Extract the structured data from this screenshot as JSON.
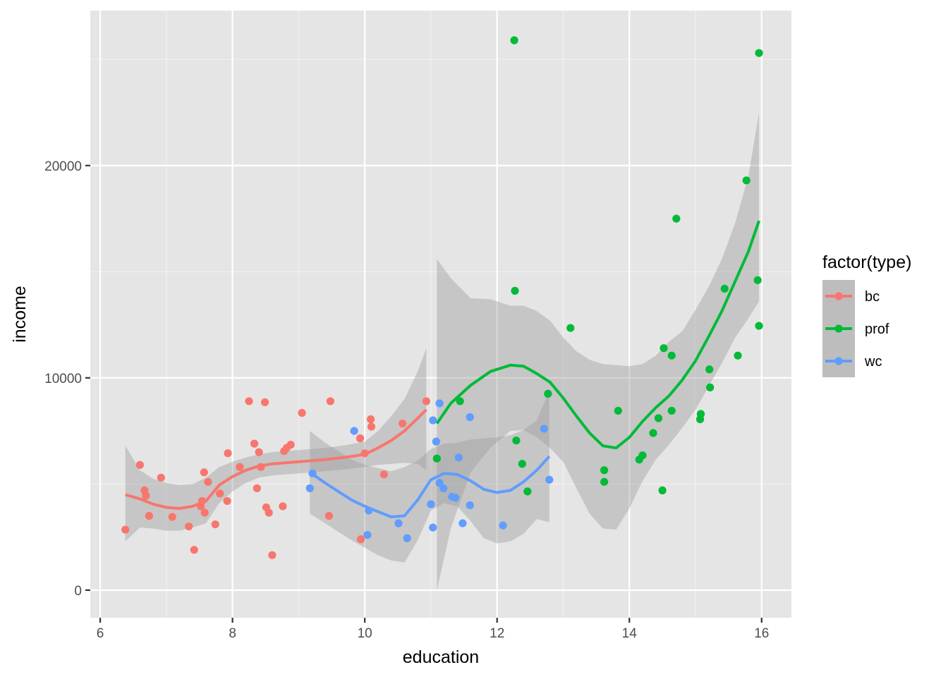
{
  "chart_data": {
    "type": "scatter",
    "xlabel": "education",
    "ylabel": "income",
    "xlim": [
      5.85,
      16.45
    ],
    "ylim": [
      -1300,
      27300
    ],
    "x_ticks": [
      6,
      8,
      10,
      12,
      14,
      16
    ],
    "y_ticks": [
      0,
      10000,
      20000
    ],
    "x_tick_labels": [
      "6",
      "8",
      "10",
      "12",
      "14",
      "16"
    ],
    "y_tick_labels": [
      "0",
      "10000",
      "20000"
    ],
    "grid": true,
    "panel_background": "#e5e5e5",
    "legend": {
      "title": "factor(type)",
      "position": "right"
    },
    "series": [
      {
        "name": "bc",
        "color": "#F8766D",
        "points": [
          [
            6.38,
            2850
          ],
          [
            6.6,
            5900
          ],
          [
            6.67,
            4700
          ],
          [
            6.69,
            4450
          ],
          [
            6.74,
            3500
          ],
          [
            6.92,
            5300
          ],
          [
            7.09,
            3450
          ],
          [
            7.34,
            3000
          ],
          [
            7.42,
            1900
          ],
          [
            7.52,
            3950
          ],
          [
            7.54,
            4200
          ],
          [
            7.57,
            5550
          ],
          [
            7.58,
            3650
          ],
          [
            7.63,
            5100
          ],
          [
            7.74,
            3100
          ],
          [
            7.81,
            4550
          ],
          [
            7.92,
            4200
          ],
          [
            7.93,
            6450
          ],
          [
            8.11,
            5800
          ],
          [
            8.25,
            8900
          ],
          [
            8.33,
            6900
          ],
          [
            8.37,
            4800
          ],
          [
            8.4,
            6500
          ],
          [
            8.43,
            5800
          ],
          [
            8.49,
            8850
          ],
          [
            8.51,
            3900
          ],
          [
            8.55,
            3650
          ],
          [
            8.6,
            1650
          ],
          [
            8.76,
            3950
          ],
          [
            8.78,
            6550
          ],
          [
            8.82,
            6700
          ],
          [
            8.88,
            6850
          ],
          [
            9.05,
            8350
          ],
          [
            9.46,
            3500
          ],
          [
            9.48,
            8900
          ],
          [
            9.94,
            2400
          ],
          [
            9.93,
            7150
          ],
          [
            10.0,
            6450
          ],
          [
            10.09,
            8050
          ],
          [
            10.1,
            7700
          ],
          [
            10.29,
            5450
          ],
          [
            10.57,
            7850
          ],
          [
            10.93,
            8900
          ]
        ],
        "smooth_x": [
          6.38,
          6.6,
          6.8,
          7.0,
          7.2,
          7.4,
          7.6,
          7.8,
          8.0,
          8.2,
          8.4,
          8.6,
          8.8,
          9.0,
          9.2,
          9.4,
          9.6,
          9.8,
          10.0,
          10.2,
          10.4,
          10.6,
          10.8,
          10.93
        ],
        "smooth_y": [
          4500,
          4300,
          4050,
          3900,
          3850,
          3950,
          4200,
          4950,
          5350,
          5650,
          5850,
          5950,
          6000,
          6050,
          6100,
          6150,
          6220,
          6300,
          6400,
          6700,
          7050,
          7500,
          8100,
          8500
        ],
        "band_upper": [
          6800,
          5650,
          5250,
          5050,
          4950,
          5000,
          5300,
          5800,
          6050,
          6250,
          6400,
          6500,
          6550,
          6600,
          6650,
          6700,
          6780,
          6880,
          7000,
          7500,
          8200,
          9000,
          10300,
          11400
        ],
        "band_lower": [
          2300,
          2950,
          2900,
          2800,
          2800,
          2950,
          3150,
          4100,
          4650,
          5050,
          5300,
          5400,
          5450,
          5500,
          5550,
          5600,
          5660,
          5720,
          5800,
          5900,
          5950,
          6000,
          5950,
          5650
        ]
      },
      {
        "name": "prof",
        "color": "#00BA38",
        "points": [
          [
            11.09,
            6200
          ],
          [
            11.44,
            8900
          ],
          [
            12.26,
            25900
          ],
          [
            12.27,
            14100
          ],
          [
            12.29,
            7050
          ],
          [
            12.38,
            5950
          ],
          [
            12.46,
            4650
          ],
          [
            12.77,
            9250
          ],
          [
            13.11,
            12350
          ],
          [
            13.62,
            5650
          ],
          [
            13.62,
            5100
          ],
          [
            13.83,
            8450
          ],
          [
            14.15,
            6150
          ],
          [
            14.2,
            6350
          ],
          [
            14.36,
            7400
          ],
          [
            14.44,
            8100
          ],
          [
            14.5,
            4700
          ],
          [
            14.52,
            11400
          ],
          [
            14.64,
            11050
          ],
          [
            14.64,
            8450
          ],
          [
            14.71,
            17500
          ],
          [
            15.07,
            8050
          ],
          [
            15.08,
            8300
          ],
          [
            15.21,
            10400
          ],
          [
            15.22,
            9550
          ],
          [
            15.44,
            14200
          ],
          [
            15.64,
            11050
          ],
          [
            15.77,
            19300
          ],
          [
            15.94,
            14600
          ],
          [
            15.96,
            12450
          ],
          [
            15.96,
            25300
          ]
        ],
        "smooth_x": [
          11.09,
          11.3,
          11.6,
          11.9,
          12.2,
          12.4,
          12.6,
          12.8,
          13.0,
          13.2,
          13.4,
          13.6,
          13.8,
          14.0,
          14.2,
          14.4,
          14.6,
          14.8,
          15.0,
          15.2,
          15.4,
          15.6,
          15.8,
          15.96
        ],
        "smooth_y": [
          7850,
          8800,
          9650,
          10300,
          10600,
          10550,
          10200,
          9800,
          9050,
          8200,
          7400,
          6800,
          6700,
          7200,
          7950,
          8600,
          9150,
          9900,
          10800,
          11950,
          13150,
          14550,
          15950,
          17400
        ],
        "band_upper": [
          15600,
          14700,
          13750,
          13700,
          13400,
          13400,
          13150,
          12700,
          11900,
          11250,
          10850,
          10650,
          10600,
          10550,
          10650,
          11050,
          11700,
          12200,
          13200,
          14300,
          15600,
          17300,
          19500,
          22500
        ],
        "band_lower": [
          0,
          2900,
          5550,
          6700,
          7500,
          7550,
          7200,
          6700,
          6050,
          4800,
          3600,
          2900,
          2850,
          3850,
          5150,
          6150,
          6850,
          7650,
          8500,
          9600,
          10700,
          11900,
          12800,
          13600
        ]
      },
      {
        "name": "wc",
        "color": "#619CFF",
        "points": [
          [
            9.17,
            4800
          ],
          [
            9.21,
            5500
          ],
          [
            9.84,
            7500
          ],
          [
            10.04,
            2600
          ],
          [
            10.06,
            3750
          ],
          [
            10.51,
            3150
          ],
          [
            10.64,
            2450
          ],
          [
            11.0,
            4050
          ],
          [
            11.03,
            8000
          ],
          [
            11.03,
            2950
          ],
          [
            11.08,
            7000
          ],
          [
            11.13,
            8800
          ],
          [
            11.13,
            5050
          ],
          [
            11.19,
            4800
          ],
          [
            11.32,
            4400
          ],
          [
            11.37,
            4350
          ],
          [
            11.42,
            6250
          ],
          [
            11.48,
            3150
          ],
          [
            11.59,
            8150
          ],
          [
            11.59,
            4000
          ],
          [
            12.09,
            3050
          ],
          [
            12.71,
            7600
          ],
          [
            12.79,
            5200
          ]
        ],
        "smooth_x": [
          9.17,
          9.4,
          9.6,
          9.8,
          10.0,
          10.2,
          10.4,
          10.6,
          10.8,
          11.0,
          11.2,
          11.4,
          11.6,
          11.8,
          12.0,
          12.2,
          12.4,
          12.6,
          12.79
        ],
        "smooth_y": [
          5550,
          5050,
          4650,
          4250,
          3950,
          3700,
          3450,
          3500,
          4250,
          5200,
          5500,
          5450,
          5150,
          4750,
          4600,
          4700,
          5100,
          5650,
          6300
        ],
        "band_upper": [
          7500,
          6950,
          6550,
          6150,
          5900,
          5750,
          5600,
          5800,
          6100,
          6650,
          6900,
          6950,
          7100,
          7150,
          7200,
          7300,
          7550,
          8000,
          9400
        ],
        "band_lower": [
          3600,
          3150,
          2750,
          2350,
          2000,
          1650,
          1400,
          1300,
          2350,
          3750,
          4100,
          3950,
          3250,
          2450,
          2200,
          2300,
          2650,
          3350,
          3200
        ]
      }
    ]
  }
}
